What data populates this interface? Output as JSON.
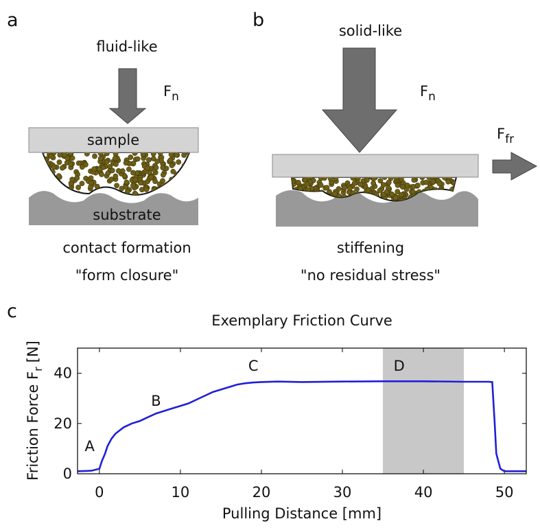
{
  "panels": {
    "a": {
      "label": "a",
      "state": "fluid-like",
      "force": "F",
      "force_sub": "n",
      "top": "sample",
      "bottom": "substrate",
      "caption": "contact formation",
      "caption2": "\"form closure\""
    },
    "b": {
      "label": "b",
      "state": "solid-like",
      "force": "F",
      "force_sub": "n",
      "friction": "F",
      "friction_sub": "fr",
      "caption": "stiffening",
      "caption2": "\"no residual stress\""
    },
    "c": {
      "label": "c"
    }
  },
  "chart_data": {
    "type": "line",
    "title": "Exemplary Friction Curve",
    "x_label": "Pulling Distance [mm]",
    "y_label": "Friction Force F",
    "y_label_sub": "r",
    "y_label_unit": "[N]",
    "xlim": [
      -2.7,
      52.7
    ],
    "ylim": [
      0,
      50
    ],
    "xticks": [
      0,
      10,
      20,
      30,
      40,
      50
    ],
    "yticks": [
      0,
      20,
      40
    ],
    "x": [
      -2.7,
      -1,
      0,
      0.3,
      0.7,
      1,
      1.5,
      2,
      3,
      4,
      5,
      6,
      7,
      8,
      9,
      10,
      11,
      12,
      13,
      14,
      15,
      16,
      17,
      18,
      19,
      20,
      22,
      25,
      30,
      35,
      40,
      45,
      48,
      48.5,
      48.8,
      49,
      49.5,
      50,
      52.7
    ],
    "series": [
      {
        "color": "#1f1fd9",
        "values": [
          1,
          1.2,
          2,
          5,
          8,
          11,
          14,
          16,
          18.5,
          20,
          21,
          22.5,
          24,
          25,
          26,
          27,
          28,
          29.5,
          31,
          32.5,
          33.5,
          34.5,
          35.5,
          36,
          36.3,
          36.5,
          36.7,
          36.5,
          36.7,
          36.8,
          36.8,
          36.6,
          36.6,
          36.5,
          20,
          8,
          2,
          1,
          1
        ]
      }
    ],
    "shaded_region": [
      35,
      45
    ],
    "annotations": [
      {
        "text": "A",
        "x": -1.2,
        "y": 9
      },
      {
        "text": "B",
        "x": 7,
        "y": 27
      },
      {
        "text": "C",
        "x": 19,
        "y": 41
      },
      {
        "text": "D",
        "x": 37,
        "y": 41
      }
    ]
  }
}
